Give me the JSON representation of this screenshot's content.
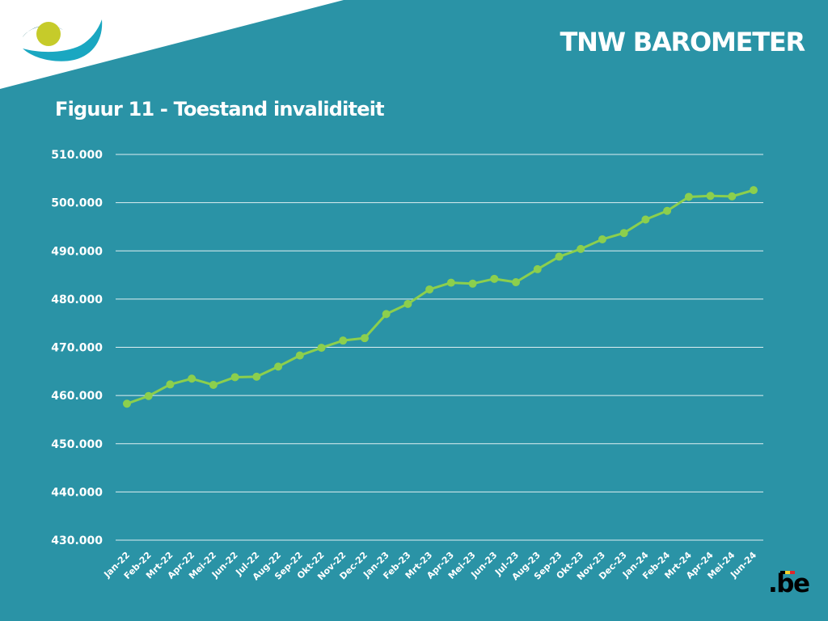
{
  "header": {
    "title": "TNW BAROMETER"
  },
  "figure": {
    "title": "Figuur 11 - Toestand invaliditeit"
  },
  "logo": {
    "text": ".be",
    "flag_colors": [
      "#000000",
      "#f5d22c",
      "#e0262b"
    ]
  },
  "colors": {
    "background": "#2a93a6",
    "line": "#8ccf4d",
    "grid": "#ffffff",
    "text": "#ffffff",
    "corner": "#ffffff",
    "logo_teal": "#1aa7c1",
    "logo_dark": "#12696f",
    "logo_yellow": "#c6cb2a"
  },
  "chart_data": {
    "type": "line",
    "title": "Figuur 11 - Toestand invaliditeit",
    "xlabel": "",
    "ylabel": "",
    "categories": [
      "Jan-22",
      "Feb-22",
      "Mrt-22",
      "Apr-22",
      "Mei-22",
      "Jun-22",
      "Jul-22",
      "Aug-22",
      "Sep-22",
      "Okt-22",
      "Nov-22",
      "Dec-22",
      "Jan-23",
      "Feb-23",
      "Mrt-23",
      "Apr-23",
      "Mei-23",
      "Jun-23",
      "Jul-23",
      "Aug-23",
      "Sep-23",
      "Okt-23",
      "Nov-23",
      "Dec-23",
      "Jan-24",
      "Feb-24",
      "Mrt-24",
      "Apr-24",
      "Mei-24",
      "Jun-24"
    ],
    "values": [
      458300,
      459900,
      462300,
      463500,
      462200,
      463800,
      463900,
      466000,
      468300,
      469900,
      471400,
      471900,
      476900,
      479000,
      482000,
      483400,
      483200,
      484200,
      483500,
      486200,
      488800,
      490400,
      492400,
      493700,
      496500,
      498300,
      501200,
      501400,
      501300,
      502600
    ],
    "ylim": [
      430000,
      510000
    ],
    "yticks": [
      430000,
      440000,
      450000,
      460000,
      470000,
      480000,
      490000,
      500000,
      510000
    ],
    "ytick_labels": [
      "430.000",
      "440.000",
      "450.000",
      "460.000",
      "470.000",
      "480.000",
      "490.000",
      "500.000",
      "510.000"
    ],
    "grid": true,
    "legend": "none"
  }
}
